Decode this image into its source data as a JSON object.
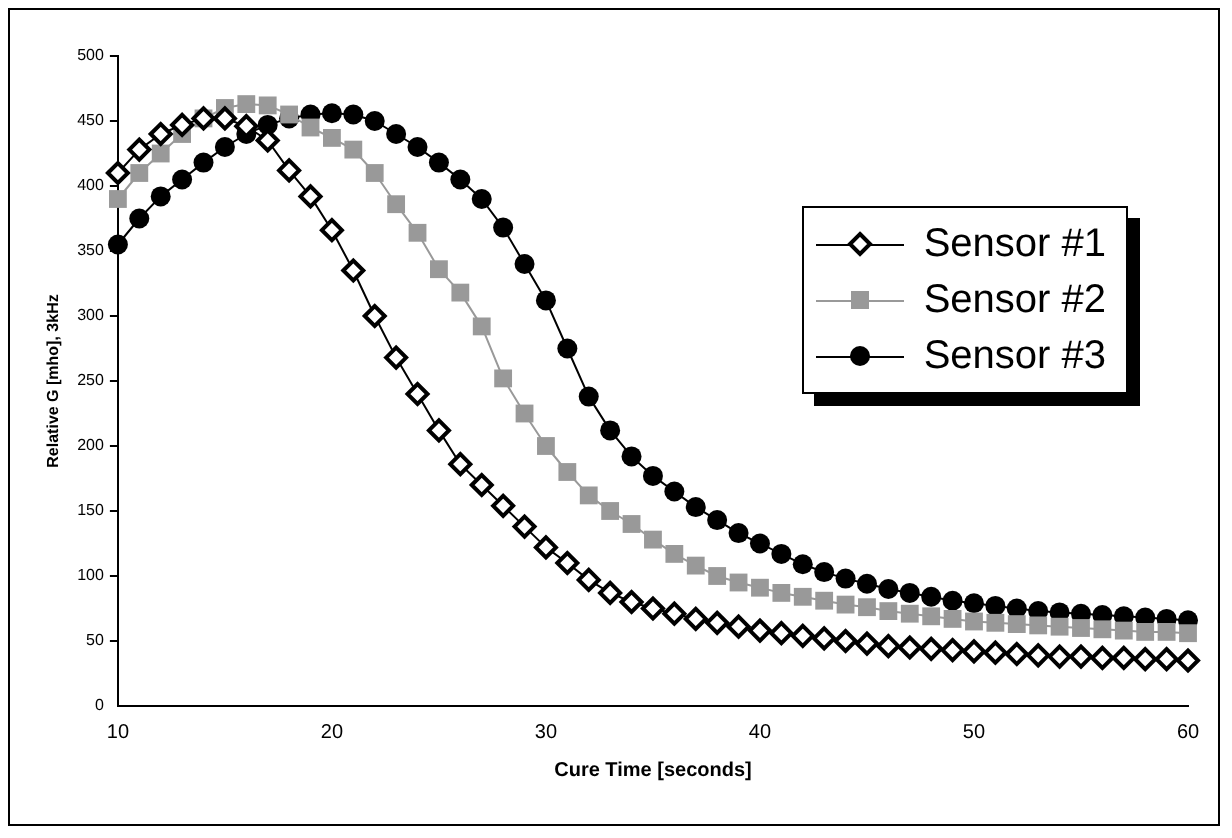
{
  "chart_data": {
    "type": "line",
    "xlabel": "Cure Time [seconds]",
    "ylabel": "Relative G [mho], 3kHz",
    "x": [
      10,
      11,
      12,
      13,
      14,
      15,
      16,
      17,
      18,
      19,
      20,
      21,
      22,
      23,
      24,
      25,
      26,
      27,
      28,
      29,
      30,
      31,
      32,
      33,
      34,
      35,
      36,
      37,
      38,
      39,
      40,
      41,
      42,
      43,
      44,
      45,
      46,
      47,
      48,
      49,
      50,
      51,
      52,
      53,
      54,
      55,
      56,
      57,
      58,
      59,
      60
    ],
    "series": [
      {
        "name": "Sensor #1",
        "color": "#000000",
        "marker": "diamond",
        "values": [
          410,
          428,
          440,
          447,
          452,
          452,
          446,
          435,
          412,
          392,
          366,
          335,
          300,
          268,
          240,
          212,
          186,
          170,
          154,
          138,
          122,
          110,
          97,
          87,
          80,
          75,
          71,
          67,
          64,
          61,
          58,
          56,
          54,
          52,
          50,
          48,
          46,
          45,
          44,
          43,
          42,
          41,
          40,
          39,
          38,
          38,
          37,
          37,
          36,
          36,
          35
        ]
      },
      {
        "name": "Sensor #2",
        "color": "#999999",
        "marker": "square",
        "values": [
          390,
          410,
          425,
          440,
          452,
          460,
          463,
          462,
          455,
          445,
          437,
          428,
          410,
          386,
          364,
          336,
          318,
          292,
          252,
          225,
          200,
          180,
          162,
          150,
          140,
          128,
          117,
          108,
          100,
          95,
          91,
          87,
          84,
          81,
          78,
          76,
          73,
          71,
          69,
          67,
          65,
          64,
          63,
          62,
          61,
          60,
          59,
          58,
          57,
          57,
          56
        ]
      },
      {
        "name": "Sensor #3",
        "color": "#000000",
        "marker": "circle",
        "values": [
          355,
          375,
          392,
          405,
          418,
          430,
          440,
          447,
          452,
          455,
          456,
          455,
          450,
          440,
          430,
          418,
          405,
          390,
          368,
          340,
          312,
          275,
          238,
          212,
          192,
          177,
          165,
          153,
          143,
          133,
          125,
          117,
          109,
          103,
          98,
          94,
          90,
          87,
          84,
          81,
          79,
          77,
          75,
          73,
          72,
          71,
          70,
          69,
          68,
          67,
          66
        ]
      }
    ],
    "xlim": [
      10,
      60
    ],
    "xticks": [
      10,
      20,
      30,
      40,
      50,
      60
    ],
    "ylim": [
      0,
      500
    ],
    "yticks": [
      0,
      50,
      100,
      150,
      200,
      250,
      300,
      350,
      400,
      450,
      500
    ],
    "grid": false,
    "legend": "top right",
    "line_style": "solid"
  }
}
